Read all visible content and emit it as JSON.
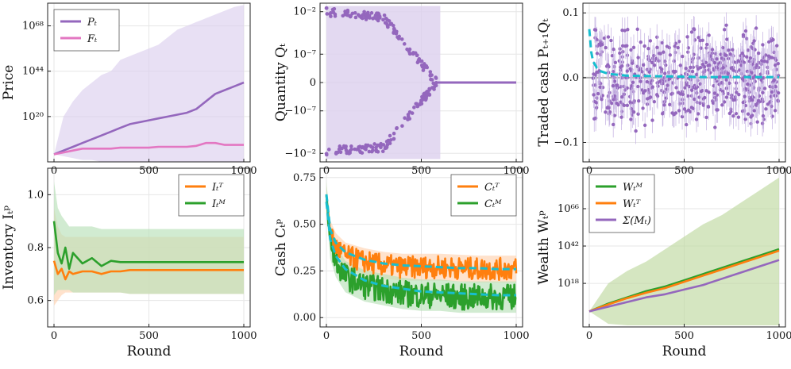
{
  "figure": {
    "xlabel": "Round"
  },
  "chart_data": [
    {
      "id": "price",
      "type": "line",
      "ylabel": "Price",
      "yscale": "log",
      "xlim": [
        0,
        1000
      ],
      "ylim": [
        -4,
        80
      ],
      "xticks": [
        "0",
        "500",
        "1000"
      ],
      "show_xlabel": false,
      "yticks": [
        {
          "v": 20,
          "label": "10²⁰"
        },
        {
          "v": 44,
          "label": "10⁴⁴"
        },
        {
          "v": 68,
          "label": "10⁶⁸"
        }
      ],
      "legend": "top-left",
      "series": [
        {
          "name": "Pₜ",
          "color": "#9467bd",
          "band_color": "#dcd0ee",
          "x": [
            0,
            50,
            100,
            150,
            200,
            250,
            300,
            350,
            400,
            450,
            500,
            550,
            600,
            650,
            700,
            750,
            800,
            850,
            900,
            950,
            1000
          ],
          "y": [
            0,
            2,
            4,
            6,
            8,
            10,
            12,
            14,
            16,
            17,
            18,
            19,
            20,
            21,
            22,
            24,
            28,
            32,
            34,
            36,
            38
          ],
          "lower": [
            0,
            -1,
            -2,
            -3,
            -3,
            -4,
            -4,
            -4,
            -4,
            -4,
            -4,
            -4,
            -4,
            -4,
            -4,
            -4,
            -4,
            -4,
            -4,
            -4,
            -4
          ],
          "upper": [
            0,
            20,
            28,
            34,
            38,
            42,
            44,
            50,
            52,
            54,
            56,
            58,
            62,
            66,
            68,
            70,
            72,
            74,
            76,
            78,
            79
          ]
        },
        {
          "name": "Fₜ",
          "color": "#e377c2",
          "x": [
            0,
            50,
            100,
            150,
            200,
            250,
            300,
            350,
            400,
            450,
            500,
            550,
            600,
            650,
            700,
            750,
            800,
            850,
            900,
            950,
            1000
          ],
          "y": [
            0,
            1,
            2,
            3,
            3,
            3,
            3,
            3.5,
            3.5,
            3.5,
            3.5,
            4,
            4,
            4,
            4,
            4.5,
            6,
            6,
            5,
            5,
            5
          ]
        }
      ]
    },
    {
      "id": "quantity",
      "type": "scatter",
      "ylabel": "Quantity Qₜ",
      "yscale": "symlog",
      "xlim": [
        0,
        1000
      ],
      "ylim": [
        -5.6,
        5.6
      ],
      "xticks": [
        "0",
        "500",
        "1000"
      ],
      "show_xlabel": false,
      "yticks": [
        {
          "v": 5,
          "label": "10⁻²"
        },
        {
          "v": 2.0,
          "label": "10⁻⁷"
        },
        {
          "v": 0,
          "label": "0"
        },
        {
          "v": -2.0,
          "label": "−10⁻⁷"
        },
        {
          "v": -5,
          "label": "−10⁻²"
        }
      ],
      "series": [
        {
          "name": "Qₜ",
          "color": "#9467bd",
          "band_color": "#dcd0ee",
          "segments": [
            {
              "x0": 0,
              "x1": 300,
              "y0": 5.0,
              "y1": 4.6
            },
            {
              "x0": 300,
              "x1": 580,
              "y0": 4.6,
              "y1": 0.0
            },
            {
              "x0": 0,
              "x1": 300,
              "y0": -4.8,
              "y1": -4.6
            },
            {
              "x0": 300,
              "x1": 580,
              "y0": -4.6,
              "y1": 0.0
            },
            {
              "x0": 580,
              "x1": 1000,
              "y0": 0.0,
              "y1": 0.0
            }
          ],
          "band": {
            "lower": -5.4,
            "upper": 5.4,
            "x_end": 600
          }
        }
      ]
    },
    {
      "id": "traded-cash",
      "type": "scatter",
      "ylabel": "Traded cash Pₜ₊₁Qₜ",
      "yscale": "linear",
      "xlim": [
        0,
        1000
      ],
      "ylim": [
        -0.13,
        0.115
      ],
      "xticks": [
        "0",
        "500",
        "1000"
      ],
      "show_xlabel": false,
      "yticks": [
        {
          "v": -0.1,
          "label": "−0.1"
        },
        {
          "v": 0.0,
          "label": "0.0"
        },
        {
          "v": 0.1,
          "label": "0.1"
        }
      ],
      "series": [
        {
          "name": "Pₜ₊₁Qₜ",
          "color": "#9467bd",
          "spread": 0.085,
          "n_points": 600
        },
        {
          "name": "mean",
          "color": "#17becf",
          "dashed": true,
          "x": [
            0,
            10,
            20,
            40,
            60,
            100,
            200,
            400,
            600,
            800,
            1000
          ],
          "y": [
            0.075,
            0.04,
            0.025,
            0.015,
            0.01,
            0.006,
            0.003,
            0.002,
            0.001,
            0.001,
            0.001
          ]
        }
      ]
    },
    {
      "id": "inventory",
      "type": "line",
      "ylabel": "Inventory Iₜᵖ",
      "yscale": "linear",
      "xlim": [
        0,
        1000
      ],
      "ylim": [
        0.5,
        1.1
      ],
      "xticks": [
        "0",
        "500",
        "1000"
      ],
      "show_xlabel": true,
      "yticks": [
        {
          "v": 0.6,
          "label": "0.6"
        },
        {
          "v": 0.8,
          "label": "0.8"
        },
        {
          "v": 1.0,
          "label": "1.0"
        }
      ],
      "legend": "top-right",
      "series": [
        {
          "name": "Iₜᵀ",
          "color": "#ff7f0e",
          "band_color": "#ffd3b0",
          "x": [
            0,
            20,
            40,
            60,
            80,
            100,
            150,
            200,
            250,
            300,
            350,
            400,
            600,
            800,
            1000
          ],
          "y": [
            0.75,
            0.7,
            0.72,
            0.68,
            0.71,
            0.7,
            0.71,
            0.71,
            0.7,
            0.71,
            0.71,
            0.715,
            0.715,
            0.715,
            0.715
          ],
          "lower": [
            0.58,
            0.6,
            0.62,
            0.63,
            0.63,
            0.63,
            0.63,
            0.63,
            0.63,
            0.63,
            0.63,
            0.625,
            0.625,
            0.625,
            0.625
          ],
          "upper": [
            0.95,
            0.88,
            0.85,
            0.84,
            0.84,
            0.84,
            0.84,
            0.84,
            0.84,
            0.84,
            0.84,
            0.84,
            0.84,
            0.84,
            0.84
          ]
        },
        {
          "name": "Iₜᴹ",
          "color": "#2ca02c",
          "band_color": "#b8e0b8",
          "x": [
            0,
            20,
            40,
            60,
            80,
            100,
            150,
            200,
            250,
            300,
            350,
            400,
            600,
            800,
            1000
          ],
          "y": [
            0.9,
            0.78,
            0.74,
            0.8,
            0.72,
            0.78,
            0.74,
            0.76,
            0.73,
            0.75,
            0.745,
            0.745,
            0.745,
            0.745,
            0.745
          ],
          "lower": [
            0.62,
            0.64,
            0.64,
            0.64,
            0.64,
            0.63,
            0.63,
            0.63,
            0.63,
            0.63,
            0.63,
            0.625,
            0.625,
            0.625,
            0.625
          ],
          "upper": [
            1.05,
            0.95,
            0.92,
            0.9,
            0.88,
            0.88,
            0.88,
            0.88,
            0.87,
            0.87,
            0.87,
            0.87,
            0.87,
            0.87,
            0.87
          ]
        }
      ]
    },
    {
      "id": "cash",
      "type": "line",
      "ylabel": "Cash Cₜᵖ",
      "yscale": "linear",
      "xlim": [
        0,
        1000
      ],
      "ylim": [
        -0.05,
        0.8
      ],
      "xticks": [
        "0",
        "500",
        "1000"
      ],
      "show_xlabel": true,
      "yticks": [
        {
          "v": 0.0,
          "label": "0.00"
        },
        {
          "v": 0.25,
          "label": "0.25"
        },
        {
          "v": 0.5,
          "label": "0.50"
        },
        {
          "v": 0.75,
          "label": "0.75"
        }
      ],
      "legend": "top-right",
      "series": [
        {
          "name": "Cₜᵀ",
          "color": "#ff7f0e",
          "band_color": "#ffd3b0",
          "x": [
            0,
            20,
            50,
            100,
            200,
            300,
            400,
            500,
            600,
            700,
            800,
            900,
            1000
          ],
          "y": [
            0.65,
            0.45,
            0.38,
            0.33,
            0.3,
            0.28,
            0.27,
            0.27,
            0.27,
            0.265,
            0.26,
            0.26,
            0.26
          ],
          "noise": 0.06
        },
        {
          "name": "Cₜᴹ",
          "color": "#2ca02c",
          "band_color": "#b8e0b8",
          "x": [
            0,
            20,
            50,
            100,
            200,
            300,
            400,
            500,
            600,
            700,
            800,
            900,
            1000
          ],
          "y": [
            0.65,
            0.4,
            0.3,
            0.22,
            0.17,
            0.15,
            0.13,
            0.12,
            0.12,
            0.11,
            0.11,
            0.11,
            0.11
          ],
          "noise": 0.07
        },
        {
          "name": "fit-T",
          "color": "#17becf",
          "dashed": true,
          "x": [
            0,
            20,
            50,
            100,
            200,
            300,
            400,
            500,
            600,
            700,
            800,
            900,
            1000
          ],
          "y": [
            0.66,
            0.47,
            0.4,
            0.35,
            0.31,
            0.29,
            0.28,
            0.275,
            0.27,
            0.265,
            0.265,
            0.26,
            0.26
          ]
        },
        {
          "name": "fit-M",
          "color": "#17becf",
          "dashed": true,
          "x": [
            0,
            20,
            50,
            100,
            200,
            300,
            400,
            500,
            600,
            700,
            800,
            900,
            1000
          ],
          "y": [
            0.62,
            0.42,
            0.33,
            0.26,
            0.2,
            0.17,
            0.155,
            0.14,
            0.135,
            0.13,
            0.125,
            0.12,
            0.12
          ]
        }
      ]
    },
    {
      "id": "wealth",
      "type": "line",
      "ylabel": "Wealth Wₜᵖ",
      "yscale": "log",
      "xlim": [
        0,
        1000
      ],
      "ylim": [
        -10,
        92
      ],
      "xticks": [
        "0",
        "500",
        "1000"
      ],
      "show_xlabel": true,
      "yticks": [
        {
          "v": 18,
          "label": "10¹⁸"
        },
        {
          "v": 42,
          "label": "10⁴²"
        },
        {
          "v": 66,
          "label": "10⁶⁶"
        }
      ],
      "legend": "top-left",
      "series": [
        {
          "name": "Wₜᴹ",
          "color": "#2ca02c",
          "band_color": "#bfd8a0",
          "x": [
            0,
            100,
            200,
            300,
            400,
            500,
            600,
            700,
            800,
            900,
            1000
          ],
          "y": [
            0,
            5,
            9,
            13,
            16,
            20,
            24,
            28,
            32,
            36,
            40
          ],
          "lower": [
            0,
            -8,
            -9,
            -9,
            -9,
            -9,
            -9,
            -9,
            -9,
            -9,
            -9
          ],
          "upper": [
            0,
            18,
            26,
            32,
            40,
            48,
            56,
            62,
            70,
            78,
            86
          ]
        },
        {
          "name": "Wₜᵀ",
          "color": "#ff7f0e",
          "band_color": "#cdbc90",
          "x": [
            0,
            100,
            200,
            300,
            400,
            500,
            600,
            700,
            800,
            900,
            1000
          ],
          "y": [
            0,
            4.5,
            8.5,
            12,
            15,
            19,
            23,
            27,
            31,
            35,
            39
          ]
        },
        {
          "name": "Σ(Mₜ)",
          "color": "#9467bd",
          "x": [
            0,
            100,
            200,
            300,
            400,
            500,
            600,
            700,
            800,
            900,
            1000
          ],
          "y": [
            0,
            3,
            6,
            9,
            11,
            14,
            17,
            21,
            25,
            29,
            33
          ]
        }
      ]
    }
  ]
}
